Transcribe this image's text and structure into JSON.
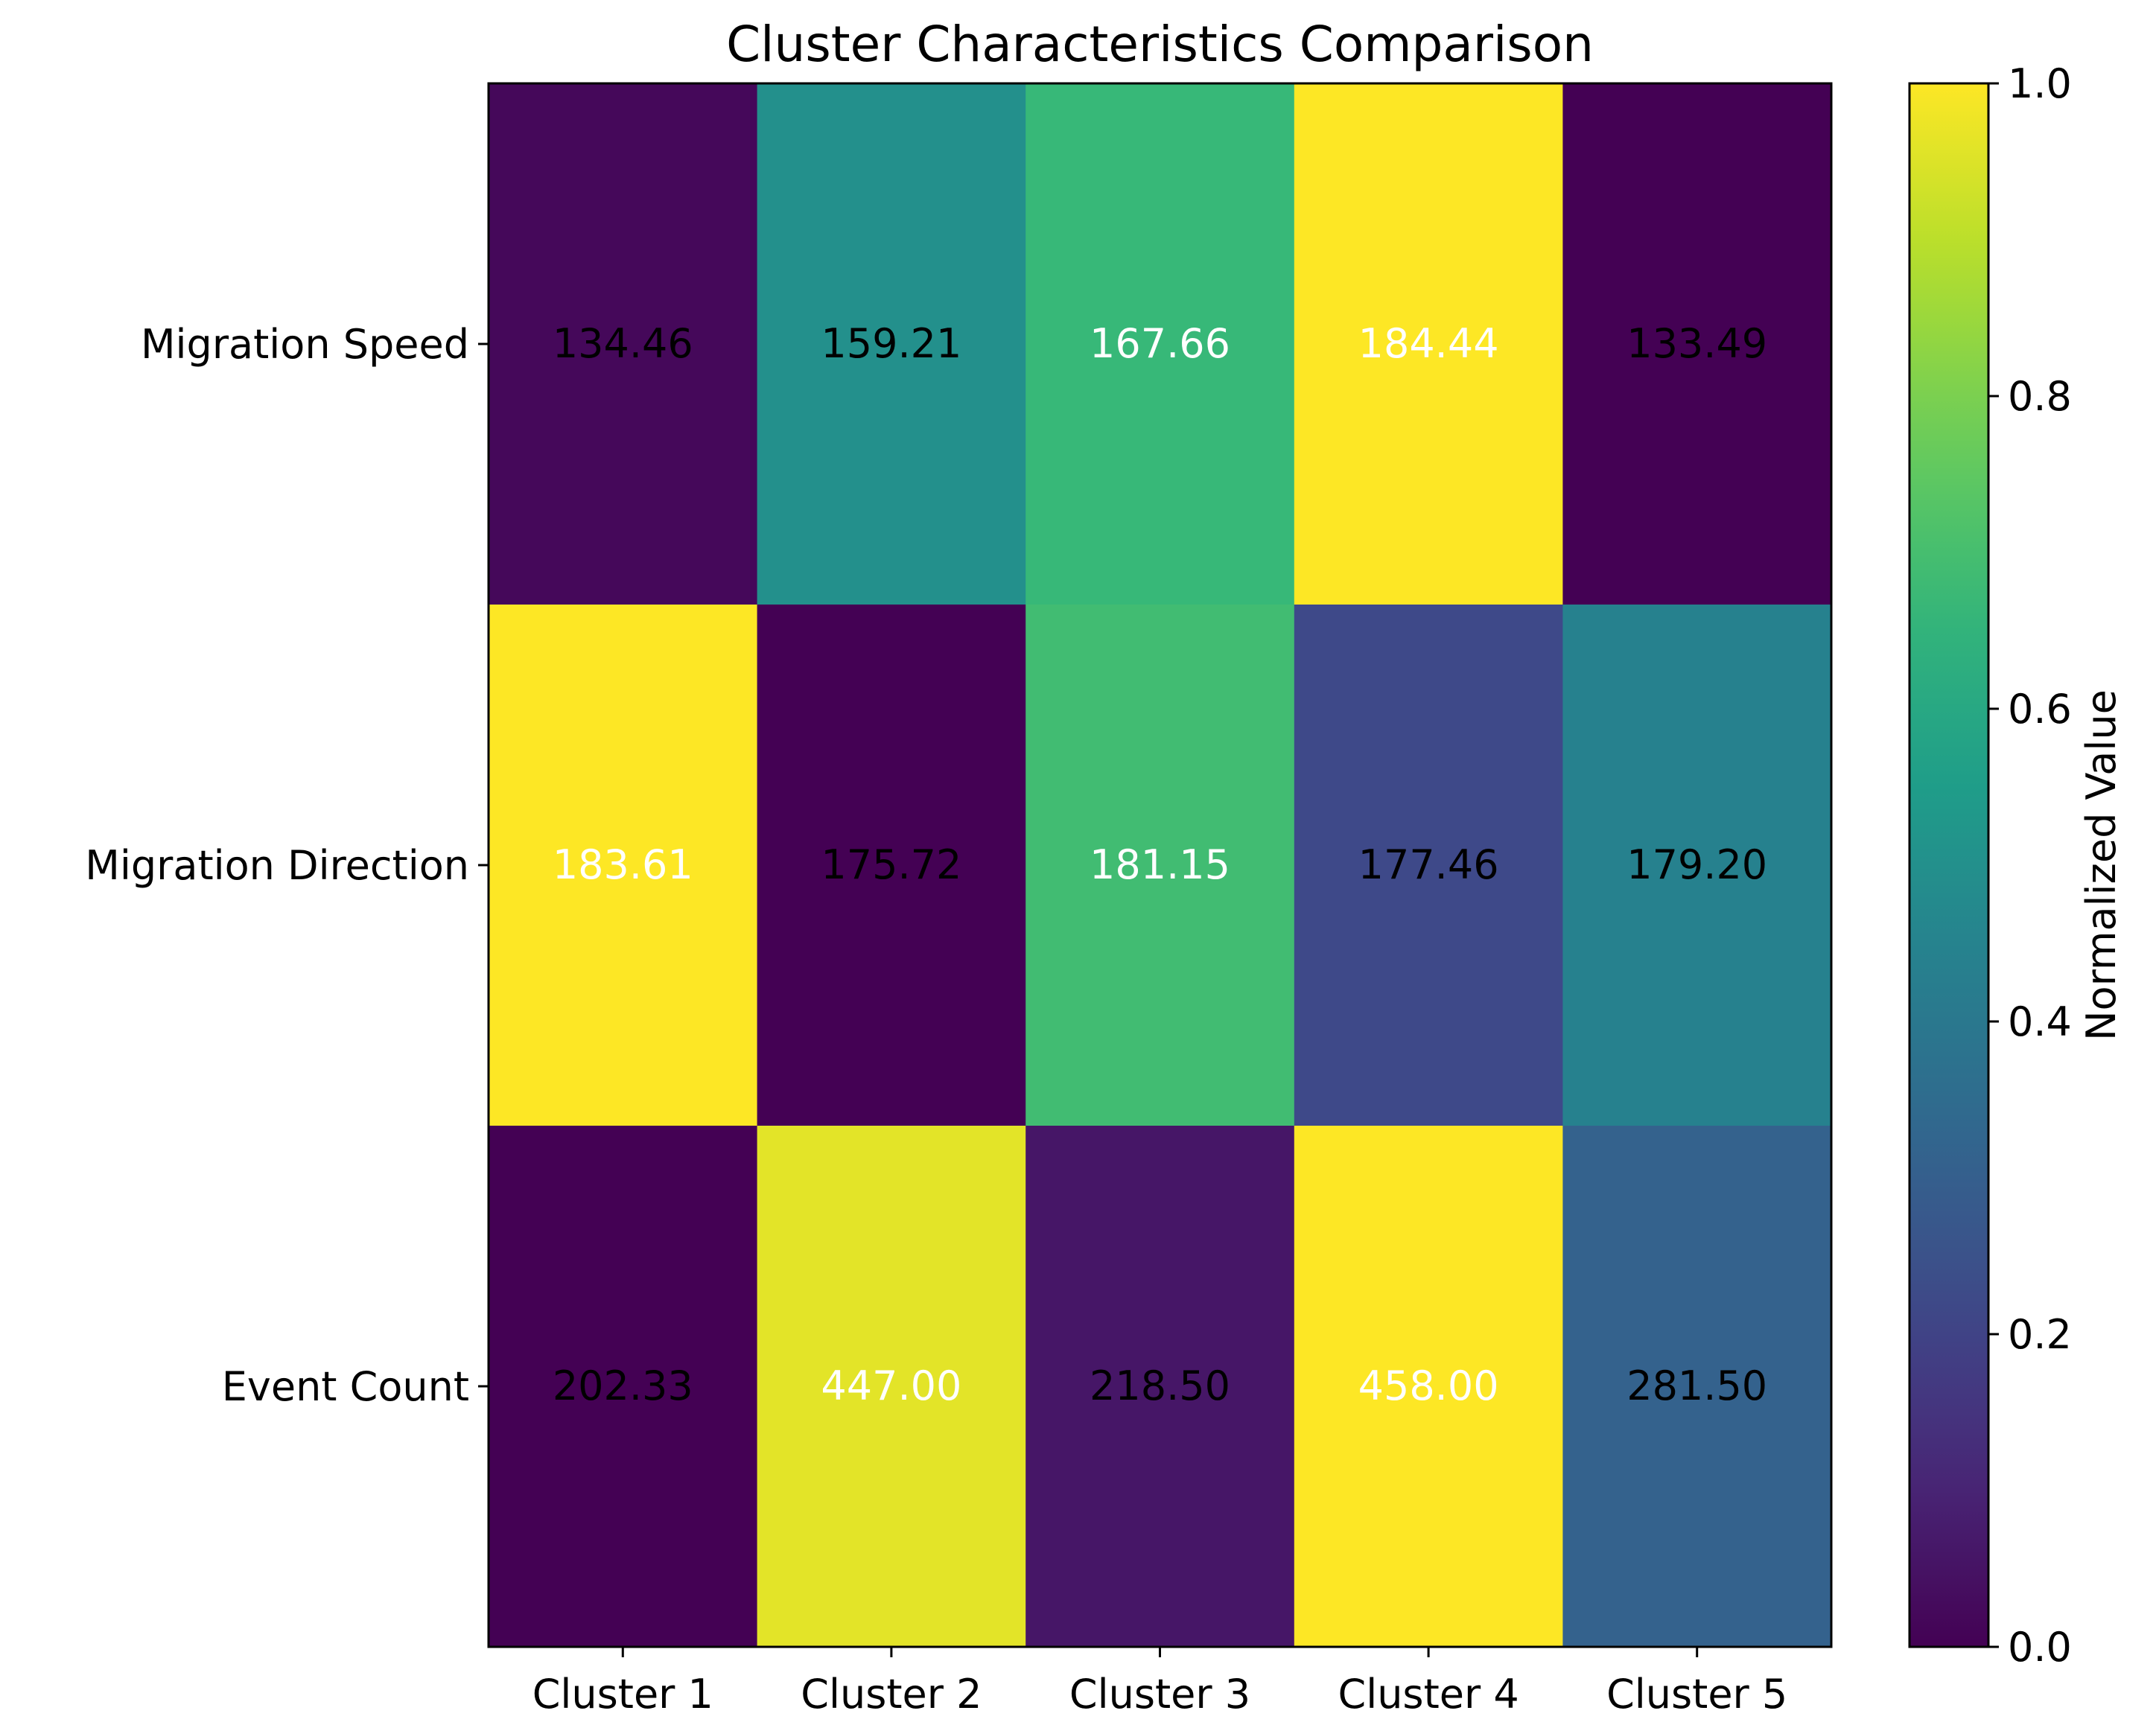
{
  "chart_data": {
    "type": "heatmap",
    "title": "Cluster Characteristics Comparison",
    "xlabel": "",
    "ylabel": "",
    "columns": [
      "Cluster 1",
      "Cluster 2",
      "Cluster 3",
      "Cluster 4",
      "Cluster 5"
    ],
    "rows": [
      "Migration Speed",
      "Migration Direction",
      "Event Count"
    ],
    "values": [
      [
        "134.46",
        "159.21",
        "167.66",
        "184.44",
        "133.49"
      ],
      [
        "183.61",
        "175.72",
        "181.15",
        "177.46",
        "179.20"
      ],
      [
        "202.33",
        "447.00",
        "218.50",
        "458.00",
        "281.50"
      ]
    ],
    "normalized": [
      [
        0.02,
        0.5,
        0.67,
        1.0,
        0.0
      ],
      [
        1.0,
        0.0,
        0.69,
        0.22,
        0.44
      ],
      [
        0.0,
        0.96,
        0.06,
        1.0,
        0.31
      ]
    ],
    "colormap": "viridis",
    "colorbar": {
      "label": "Normalized Value",
      "min": 0.0,
      "max": 1.0,
      "ticks": [
        "0.0",
        "0.2",
        "0.4",
        "0.6",
        "0.8",
        "1.0"
      ]
    },
    "grid": false,
    "legend": "none"
  }
}
